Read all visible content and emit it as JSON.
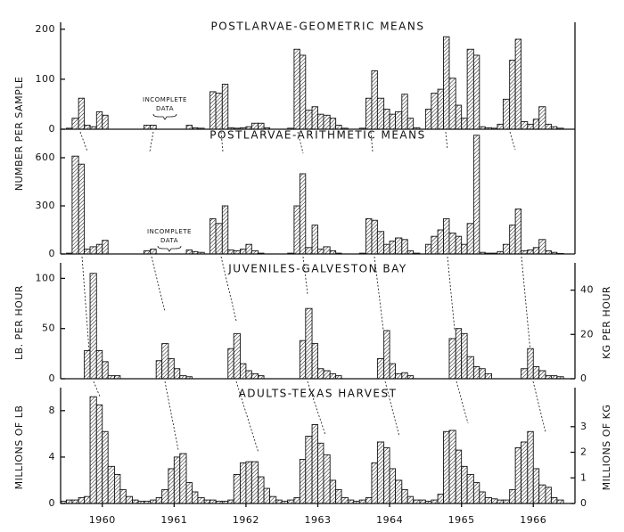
{
  "chart_data": [
    {
      "type": "histogram",
      "title": "POSTLARVAE-GEOMETRIC MEANS",
      "ylabel": "NUMBER PER SAMPLE",
      "annotation": [
        "INCOMPLETE",
        "DATA"
      ],
      "color": "#111111",
      "xlim": [
        1959.92,
        1967.08
      ],
      "ylim": [
        0,
        205
      ],
      "yticks": [
        0,
        100,
        200
      ],
      "bins": [
        1959.92,
        1960,
        1960.08,
        1960.17,
        1960.25,
        1960.33,
        1960.42,
        1960.5,
        1960.58,
        1960.67,
        1960.75,
        1960.83,
        1960.92,
        1961,
        1961.08,
        1961.17,
        1961.25,
        1961.33,
        1961.42,
        1961.5,
        1961.58,
        1961.67,
        1961.75,
        1961.83,
        1961.92,
        1962,
        1962.08,
        1962.17,
        1962.25,
        1962.33,
        1962.42,
        1962.5,
        1962.58,
        1962.67,
        1962.75,
        1962.83,
        1962.92,
        1963,
        1963.08,
        1963.17,
        1963.25,
        1963.33,
        1963.42,
        1963.5,
        1963.58,
        1963.67,
        1963.75,
        1963.83,
        1963.92,
        1964,
        1964.08,
        1964.17,
        1964.25,
        1964.33,
        1964.42,
        1964.5,
        1964.58,
        1964.67,
        1964.75,
        1964.83,
        1964.92,
        1965,
        1965.08,
        1965.17,
        1965.25,
        1965.33,
        1965.42,
        1965.5,
        1965.58,
        1965.67,
        1965.75,
        1965.83,
        1965.92,
        1966,
        1966.08,
        1966.17,
        1966.25,
        1966.33,
        1966.42,
        1966.5,
        1966.58,
        1966.67,
        1966.75,
        1966.83,
        1966.92,
        1967,
        1967.08
      ],
      "values": [
        0,
        2,
        22,
        62,
        8,
        5,
        35,
        28,
        0,
        0,
        0,
        0,
        0,
        0,
        8,
        8,
        0,
        0,
        0,
        0,
        0,
        8,
        3,
        2,
        0,
        75,
        72,
        90,
        3,
        2,
        3,
        5,
        12,
        12,
        3,
        0,
        0,
        0,
        2,
        160,
        148,
        38,
        45,
        30,
        28,
        22,
        8,
        2,
        0,
        0,
        2,
        62,
        117,
        62,
        40,
        30,
        35,
        70,
        22,
        3,
        0,
        40,
        72,
        80,
        185,
        102,
        48,
        22,
        160,
        148,
        5,
        3,
        2,
        10,
        60,
        138,
        180,
        15,
        10,
        20,
        45,
        10,
        5,
        2,
        0,
        0
      ]
    },
    {
      "type": "histogram",
      "title": "POSTLARVAE-ARITHMETIC MEANS",
      "annotation": [
        "INCOMPLETE",
        "DATA"
      ],
      "color": "#111111",
      "xlim": [
        1959.92,
        1967.08
      ],
      "ylim": [
        0,
        750
      ],
      "yticks": [
        0,
        300,
        600
      ],
      "bins": [
        1959.92,
        1960,
        1960.08,
        1960.17,
        1960.25,
        1960.33,
        1960.42,
        1960.5,
        1960.58,
        1960.67,
        1960.75,
        1960.83,
        1960.92,
        1961,
        1961.08,
        1961.17,
        1961.25,
        1961.33,
        1961.42,
        1961.5,
        1961.58,
        1961.67,
        1961.75,
        1961.83,
        1961.92,
        1962,
        1962.08,
        1962.17,
        1962.25,
        1962.33,
        1962.42,
        1962.5,
        1962.58,
        1962.67,
        1962.75,
        1962.83,
        1962.92,
        1963,
        1963.08,
        1963.17,
        1963.25,
        1963.33,
        1963.42,
        1963.5,
        1963.58,
        1963.67,
        1963.75,
        1963.83,
        1963.92,
        1964,
        1964.08,
        1964.17,
        1964.25,
        1964.33,
        1964.42,
        1964.5,
        1964.58,
        1964.67,
        1964.75,
        1964.83,
        1964.92,
        1965,
        1965.08,
        1965.17,
        1965.25,
        1965.33,
        1965.42,
        1965.5,
        1965.58,
        1965.67,
        1965.75,
        1965.83,
        1965.92,
        1966,
        1966.08,
        1966.17,
        1966.25,
        1966.33,
        1966.42,
        1966.5,
        1966.58,
        1966.67,
        1966.75,
        1966.83,
        1966.92,
        1967,
        1967.08
      ],
      "values": [
        0,
        5,
        610,
        560,
        30,
        45,
        60,
        85,
        0,
        0,
        0,
        0,
        0,
        0,
        20,
        30,
        0,
        0,
        0,
        0,
        0,
        25,
        15,
        10,
        0,
        220,
        190,
        300,
        25,
        20,
        30,
        60,
        20,
        5,
        0,
        0,
        0,
        0,
        5,
        300,
        500,
        40,
        180,
        30,
        45,
        20,
        5,
        0,
        0,
        0,
        5,
        220,
        210,
        140,
        60,
        80,
        100,
        90,
        20,
        5,
        0,
        60,
        110,
        150,
        220,
        130,
        110,
        60,
        190,
        740,
        10,
        5,
        5,
        15,
        60,
        180,
        280,
        20,
        25,
        40,
        90,
        20,
        10,
        3,
        0,
        0
      ]
    },
    {
      "type": "histogram",
      "title": "JUVENILES-GALVESTON BAY",
      "ylabel": "LB. PER HOUR",
      "y2label": "KG PER HOUR",
      "color": "#111111",
      "xlim": [
        1959.92,
        1967.08
      ],
      "ylim": [
        0,
        111
      ],
      "yticks": [
        0,
        50,
        100
      ],
      "y2lim": [
        0,
        50.3
      ],
      "y2ticks": [
        0,
        20,
        40
      ],
      "bins": [
        1959.92,
        1960,
        1960.08,
        1960.17,
        1960.25,
        1960.33,
        1960.42,
        1960.5,
        1960.58,
        1960.67,
        1960.75,
        1960.83,
        1960.92,
        1961,
        1961.08,
        1961.17,
        1961.25,
        1961.33,
        1961.42,
        1961.5,
        1961.58,
        1961.67,
        1961.75,
        1961.83,
        1961.92,
        1962,
        1962.08,
        1962.17,
        1962.25,
        1962.33,
        1962.42,
        1962.5,
        1962.58,
        1962.67,
        1962.75,
        1962.83,
        1962.92,
        1963,
        1963.08,
        1963.17,
        1963.25,
        1963.33,
        1963.42,
        1963.5,
        1963.58,
        1963.67,
        1963.75,
        1963.83,
        1963.92,
        1964,
        1964.08,
        1964.17,
        1964.25,
        1964.33,
        1964.42,
        1964.5,
        1964.58,
        1964.67,
        1964.75,
        1964.83,
        1964.92,
        1965,
        1965.08,
        1965.17,
        1965.25,
        1965.33,
        1965.42,
        1965.5,
        1965.58,
        1965.67,
        1965.75,
        1965.83,
        1965.92,
        1966,
        1966.08,
        1966.17,
        1966.25,
        1966.33,
        1966.42,
        1966.5,
        1966.58,
        1966.67,
        1966.75,
        1966.83,
        1966.92,
        1967,
        1967.08
      ],
      "values": [
        0,
        0,
        0,
        0,
        28,
        105,
        28,
        17,
        3,
        3,
        0,
        0,
        0,
        0,
        0,
        0,
        18,
        35,
        20,
        10,
        3,
        2,
        0,
        0,
        0,
        0,
        0,
        0,
        30,
        45,
        15,
        8,
        5,
        3,
        0,
        0,
        0,
        0,
        0,
        0,
        38,
        70,
        35,
        10,
        8,
        5,
        3,
        0,
        0,
        0,
        0,
        0,
        0,
        20,
        48,
        15,
        5,
        6,
        3,
        0,
        0,
        0,
        0,
        0,
        0,
        40,
        50,
        45,
        22,
        12,
        10,
        5,
        0,
        0,
        0,
        0,
        0,
        10,
        30,
        12,
        8,
        3,
        3,
        2,
        0,
        0
      ]
    },
    {
      "type": "histogram",
      "title": "ADULTS-TEXAS HARVEST",
      "ylabel": "MILLIONS OF LB",
      "y2label": "MILLIONS OF KG",
      "color": "#111111",
      "xlim": [
        1959.92,
        1967.08
      ],
      "ylim": [
        0,
        9.6
      ],
      "yticks": [
        0,
        4,
        8
      ],
      "y2lim": [
        0,
        4.35
      ],
      "y2ticks": [
        0,
        1,
        2,
        3
      ],
      "xticks": [
        {
          "value": 1960.5,
          "label": "1960"
        },
        {
          "value": 1961.5,
          "label": "1961"
        },
        {
          "value": 1962.5,
          "label": "1962"
        },
        {
          "value": 1963.5,
          "label": "1963"
        },
        {
          "value": 1964.5,
          "label": "1964"
        },
        {
          "value": 1965.5,
          "label": "1965"
        },
        {
          "value": 1966.5,
          "label": "1966"
        }
      ],
      "bins": [
        1959.92,
        1960,
        1960.08,
        1960.17,
        1960.25,
        1960.33,
        1960.42,
        1960.5,
        1960.58,
        1960.67,
        1960.75,
        1960.83,
        1960.92,
        1961,
        1961.08,
        1961.17,
        1961.25,
        1961.33,
        1961.42,
        1961.5,
        1961.58,
        1961.67,
        1961.75,
        1961.83,
        1961.92,
        1962,
        1962.08,
        1962.17,
        1962.25,
        1962.33,
        1962.42,
        1962.5,
        1962.58,
        1962.67,
        1962.75,
        1962.83,
        1962.92,
        1963,
        1963.08,
        1963.17,
        1963.25,
        1963.33,
        1963.42,
        1963.5,
        1963.58,
        1963.67,
        1963.75,
        1963.83,
        1963.92,
        1964,
        1964.08,
        1964.17,
        1964.25,
        1964.33,
        1964.42,
        1964.5,
        1964.58,
        1964.67,
        1964.75,
        1964.83,
        1964.92,
        1965,
        1965.08,
        1965.17,
        1965.25,
        1965.33,
        1965.42,
        1965.5,
        1965.58,
        1965.67,
        1965.75,
        1965.83,
        1965.92,
        1966,
        1966.08,
        1966.17,
        1966.25,
        1966.33,
        1966.42,
        1966.5,
        1966.58,
        1966.67,
        1966.75,
        1966.83,
        1966.92,
        1967,
        1967.08
      ],
      "values": [
        0.2,
        0.3,
        0.3,
        0.5,
        0.6,
        9.2,
        8.5,
        6.2,
        3.2,
        2.5,
        1.2,
        0.6,
        0.3,
        0.2,
        0.2,
        0.3,
        0.5,
        1.2,
        3.0,
        4.0,
        4.3,
        1.8,
        1.0,
        0.5,
        0.3,
        0.3,
        0.2,
        0.2,
        0.3,
        2.5,
        3.5,
        3.6,
        3.6,
        2.3,
        1.3,
        0.6,
        0.3,
        0.2,
        0.3,
        0.5,
        3.8,
        5.8,
        6.8,
        5.2,
        4.2,
        2.0,
        1.2,
        0.5,
        0.3,
        0.2,
        0.3,
        0.5,
        3.5,
        5.3,
        4.8,
        3.0,
        2.0,
        1.2,
        0.6,
        0.3,
        0.3,
        0.2,
        0.3,
        0.8,
        6.2,
        6.3,
        4.6,
        3.2,
        2.5,
        1.8,
        1.0,
        0.5,
        0.4,
        0.3,
        0.3,
        1.2,
        4.8,
        5.3,
        6.2,
        3.0,
        1.6,
        1.4,
        0.5,
        0.3,
        0,
        0
      ]
    }
  ]
}
